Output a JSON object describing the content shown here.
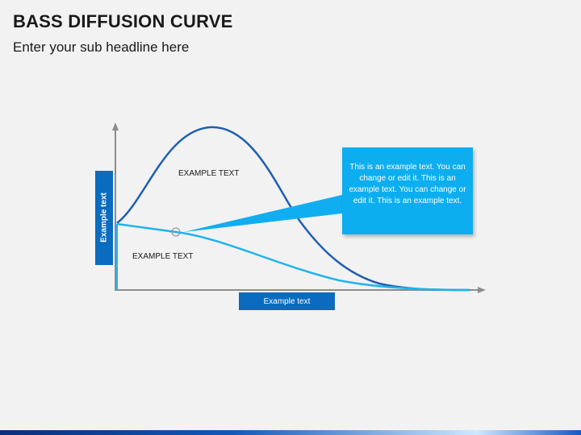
{
  "header": {
    "title": "BASS DIFFUSION CURVE",
    "subtitle": "Enter your sub headline here"
  },
  "diagram": {
    "y_axis_label": "Example text",
    "x_axis_label": "Example text",
    "upper_curve_label": "EXAMPLE TEXT",
    "lower_curve_label": "EXAMPLE TEXT",
    "callout_text": "This is an example text. You can change or edit it. This is an example text. You can change or edit it. This is an example text."
  },
  "colors": {
    "dark_blue": "#1f5fb0",
    "light_blue": "#1fb3ee",
    "label_box": "#0a6bbf",
    "callout": "#10aef0",
    "axis": "#8c8c8c"
  }
}
